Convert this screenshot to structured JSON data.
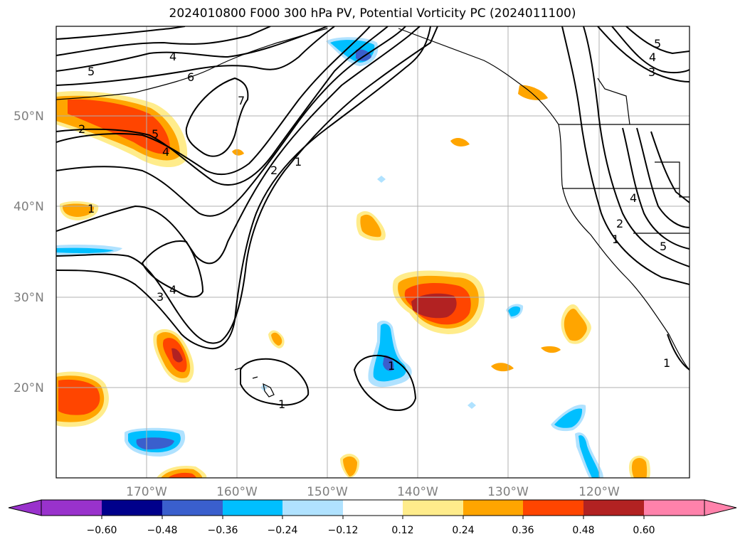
{
  "title": "2024010800 F000 300 hPa PV, Potential Vorticity PC (2024011100)",
  "map": {
    "lat_labels": [
      "50°N",
      "40°N",
      "30°N",
      "20°N"
    ],
    "lon_labels": [
      "170°W",
      "160°W",
      "150°W",
      "140°W",
      "130°W",
      "120°W"
    ],
    "lon_range": [
      -180,
      -110
    ],
    "lat_range": [
      10,
      60
    ],
    "grid": true
  },
  "contour_labels": [
    {
      "text": "4"
    },
    {
      "text": "5"
    },
    {
      "text": "6"
    },
    {
      "text": "7"
    },
    {
      "text": "2"
    },
    {
      "text": "5"
    },
    {
      "text": "4"
    },
    {
      "text": "2"
    },
    {
      "text": "1"
    },
    {
      "text": "1"
    },
    {
      "text": "3"
    },
    {
      "text": "4"
    },
    {
      "text": "1"
    },
    {
      "text": "1"
    },
    {
      "text": "5"
    },
    {
      "text": "4"
    },
    {
      "text": "3"
    },
    {
      "text": "4"
    },
    {
      "text": "2"
    },
    {
      "text": "1"
    },
    {
      "text": "5"
    },
    {
      "text": "1"
    }
  ],
  "colorbar": {
    "tick_labels": [
      "−0.60",
      "−0.48",
      "−0.36",
      "−0.24",
      "−0.12",
      "0.12",
      "0.24",
      "0.36",
      "0.48",
      "0.60"
    ],
    "colors": [
      "#9932cc",
      "#00008b",
      "#3a5fcd",
      "#00bfff",
      "#b0e2ff",
      "#ffffff",
      "#ffec8b",
      "#ffa500",
      "#ff4500",
      "#b22222",
      "#ff82ab"
    ],
    "extend": "both"
  },
  "colors": {
    "pos_low": "#ffec8b",
    "pos_mid": "#ffa500",
    "pos_high": "#ff4500",
    "pos_max": "#b22222",
    "neg_low": "#b0e2ff",
    "neg_mid": "#00bfff",
    "neg_high": "#3a5fcd",
    "neg_max": "#00008b"
  }
}
